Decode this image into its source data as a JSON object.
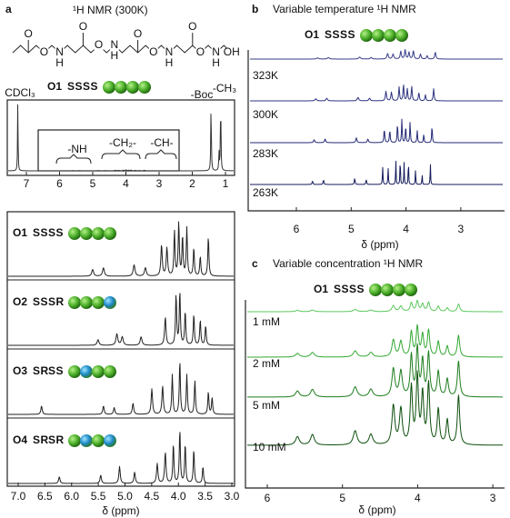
{
  "panel_a": {
    "label": "a",
    "title": "¹H NMR (300K)",
    "compound": "O1",
    "seq": [
      "S",
      "S",
      "S",
      "S"
    ],
    "structure_labels": [
      "O",
      "O",
      "N",
      "H",
      "O",
      "O",
      "N",
      "H",
      "O",
      "O",
      "N",
      "H",
      "O",
      "O",
      "N",
      "H",
      "OH"
    ],
    "peak_labels": [
      "CDCl₃",
      "-NH",
      "-CH₂-",
      "-CH-",
      "-Boc",
      "-CH₃"
    ],
    "xticks": [
      "7",
      "6",
      "5",
      "4",
      "3",
      "2",
      "1"
    ]
  },
  "panel_a_zoom": {
    "rows": [
      {
        "name": "O1",
        "seq": [
          "S",
          "S",
          "S",
          "S"
        ]
      },
      {
        "name": "O2",
        "seq": [
          "S",
          "S",
          "S",
          "R"
        ]
      },
      {
        "name": "O3",
        "seq": [
          "S",
          "R",
          "S",
          "S"
        ]
      },
      {
        "name": "O4",
        "seq": [
          "S",
          "R",
          "S",
          "R"
        ]
      }
    ],
    "xticks": [
      "7.0",
      "6.5",
      "6.0",
      "5.5",
      "5.0",
      "4.5",
      "4.0",
      "3.5",
      "3.0"
    ],
    "xlabel": "δ (ppm)"
  },
  "panel_b": {
    "label": "b",
    "title": "Variable temperature ¹H NMR",
    "compound": "O1",
    "seq": [
      "S",
      "S",
      "S",
      "S"
    ],
    "traces": [
      "323K",
      "300K",
      "283K",
      "263K"
    ],
    "xticks": [
      "6",
      "5",
      "4",
      "3"
    ],
    "xlabel": "δ (ppm)"
  },
  "panel_c": {
    "label": "c",
    "title": "Variable concentration ¹H NMR",
    "compound": "O1",
    "seq": [
      "S",
      "S",
      "S",
      "S"
    ],
    "traces": [
      "1 mM",
      "2 mM",
      "5 mM",
      "10 mM"
    ],
    "xticks": [
      "6",
      "5",
      "4",
      "3"
    ],
    "xlabel": "δ (ppm)"
  }
}
